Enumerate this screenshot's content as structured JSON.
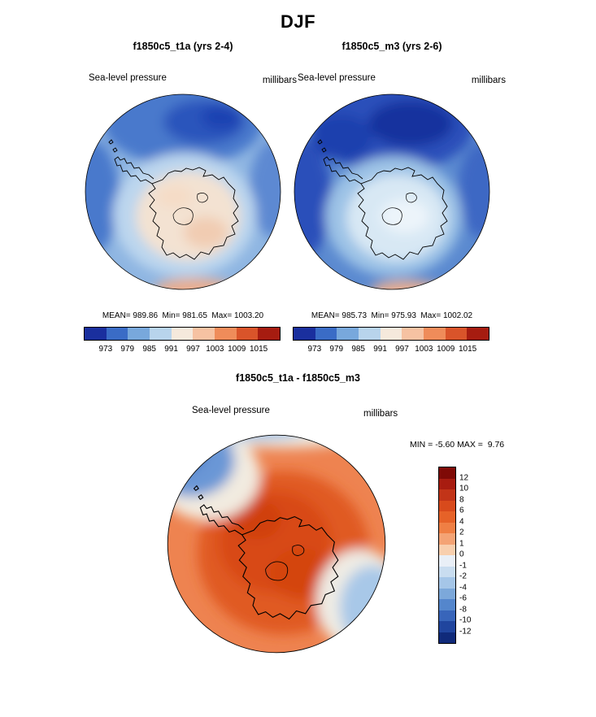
{
  "title": "DJF",
  "panels": [
    {
      "title": "f1850c5_t1a (yrs 2-4)",
      "field_label": "Sea-level pressure",
      "units": "millibars",
      "stats": "MEAN= 989.86  Min= 981.65  Max= 1003.20"
    },
    {
      "title": "f1850c5_m3 (yrs 2-6)",
      "field_label": "Sea-level pressure",
      "units": "millibars",
      "stats": "MEAN= 985.73  Min= 975.93  Max= 1002.02"
    }
  ],
  "diff": {
    "title": "f1850c5_t1a - f1850c5_m3",
    "field_label": "Sea-level pressure",
    "units": "millibars",
    "minmax": "MIN = -5.60 MAX =  9.76"
  },
  "colorbar_h": {
    "colors": [
      "#1a2f9e",
      "#3a6cc6",
      "#78a8dc",
      "#b8d4ec",
      "#f5e9dc",
      "#f6c2a2",
      "#ef8c5a",
      "#d9542a",
      "#a61c10"
    ],
    "ticks": [
      "973",
      "979",
      "985",
      "991",
      "997",
      "1003",
      "1009",
      "1015"
    ]
  },
  "colorbar_v": {
    "colors": [
      "#7f0a06",
      "#a81c10",
      "#c23418",
      "#d84a1c",
      "#e66228",
      "#ef7f44",
      "#f4a375",
      "#f8cfae",
      "#e9eff7",
      "#c9ddf0",
      "#a5c6e8",
      "#7ca8da",
      "#5486cc",
      "#3865ba",
      "#20459e",
      "#102a7a"
    ],
    "ticks": [
      "12",
      "10",
      "8",
      "6",
      "4",
      "2",
      "1",
      "0",
      "-1",
      "-2",
      "-4",
      "-6",
      "-8",
      "-10",
      "-12"
    ]
  },
  "chart_data": [
    {
      "type": "heatmap",
      "subtype": "polar-contour-map",
      "season": "DJF",
      "title": "f1850c5_t1a (yrs 2-4)",
      "variable": "Sea-level pressure",
      "units": "millibars",
      "projection": "south polar stereographic",
      "stats": {
        "mean": 989.86,
        "min": 981.65,
        "max": 1003.2
      },
      "contour_levels": [
        973,
        979,
        985,
        991,
        997,
        1003,
        1009,
        1015
      ],
      "colorbar": "blue-to-red diverging, horizontal, below map"
    },
    {
      "type": "heatmap",
      "subtype": "polar-contour-map",
      "season": "DJF",
      "title": "f1850c5_m3 (yrs 2-6)",
      "variable": "Sea-level pressure",
      "units": "millibars",
      "projection": "south polar stereographic",
      "stats": {
        "mean": 985.73,
        "min": 975.93,
        "max": 1002.02
      },
      "contour_levels": [
        973,
        979,
        985,
        991,
        997,
        1003,
        1009,
        1015
      ],
      "colorbar": "blue-to-red diverging, horizontal, below map"
    },
    {
      "type": "heatmap",
      "subtype": "polar-contour-map-difference",
      "season": "DJF",
      "title": "f1850c5_t1a - f1850c5_m3",
      "variable": "Sea-level pressure",
      "units": "millibars",
      "projection": "south polar stereographic",
      "stats": {
        "min": -5.6,
        "max": 9.76
      },
      "contour_levels": [
        -12,
        -10,
        -8,
        -6,
        -4,
        -2,
        -1,
        0,
        1,
        2,
        4,
        6,
        8,
        10,
        12
      ],
      "colorbar": "blue-to-red diverging, vertical, right of map"
    }
  ]
}
